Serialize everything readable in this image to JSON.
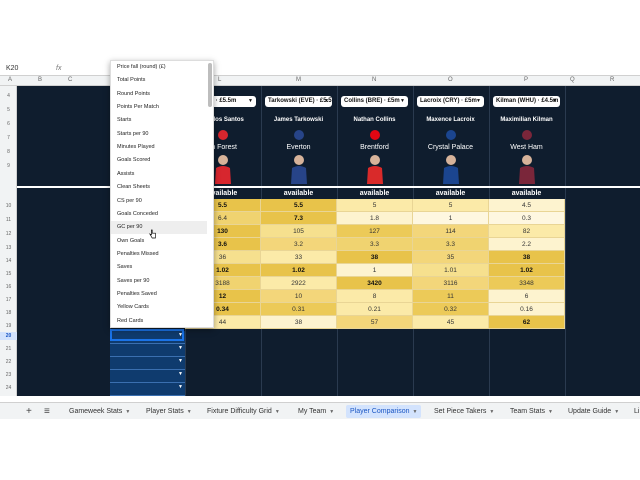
{
  "formula_bar": {
    "name_box": "K20",
    "fx": "fx"
  },
  "column_headers": [
    "A",
    "B",
    "C",
    "L",
    "M",
    "N",
    "O",
    "P",
    "Q",
    "R"
  ],
  "row_numbers": [
    "4",
    "5",
    "6",
    "7",
    "8",
    "9",
    "10",
    "11",
    "12",
    "13",
    "14",
    "15",
    "16",
    "17",
    "18",
    "19",
    "20",
    "21",
    "22",
    "23",
    "24"
  ],
  "selected_row": "20",
  "players": [
    {
      "dropdown": "o (NFO) · £5.5m",
      "name": "sta dos Santos",
      "team": "'m Forest",
      "availability": "available",
      "crest_color": "#d7262e",
      "kit_color": "#d7262e"
    },
    {
      "dropdown": "Tarkowski (EVE) · £5.5m",
      "name": "James Tarkowski",
      "team": "Everton",
      "availability": "available",
      "crest_color": "#274488",
      "kit_color": "#274488"
    },
    {
      "dropdown": "Collins (BRE) · £5m",
      "name": "Nathan Collins",
      "team": "Brentford",
      "availability": "available",
      "crest_color": "#e30613",
      "kit_color": "#d92a2a"
    },
    {
      "dropdown": "Lacroix (CRY) · £5m",
      "name": "Maxence Lacroix",
      "team": "Crystal Palace",
      "availability": "available",
      "crest_color": "#1b458f",
      "kit_color": "#1b458f"
    },
    {
      "dropdown": "Kilman (WHU) · £4.5m",
      "name": "Maximilian Kilman",
      "team": "West Ham",
      "availability": "available",
      "crest_color": "#7a263a",
      "kit_color": "#7a263a"
    }
  ],
  "stats_rows": [
    [
      "5.5",
      "5.5",
      "5",
      "5",
      "4.5"
    ],
    [
      "6.4",
      "7.3",
      "1.8",
      "1",
      "0.3"
    ],
    [
      "130",
      "105",
      "127",
      "114",
      "82"
    ],
    [
      "3.6",
      "3.2",
      "3.3",
      "3.3",
      "2.2"
    ],
    [
      "36",
      "33",
      "38",
      "35",
      "38"
    ],
    [
      "1.02",
      "1.02",
      "1",
      "1.01",
      "1.02"
    ],
    [
      "3188",
      "2922",
      "3420",
      "3116",
      "3348"
    ],
    [
      "12",
      "10",
      "8",
      "11",
      "6"
    ],
    [
      "0.34",
      "0.31",
      "0.21",
      "0.32",
      "0.16"
    ],
    [
      "44",
      "38",
      "57",
      "45",
      "62"
    ]
  ],
  "stats_bold": [
    [
      true,
      true,
      false,
      false,
      false
    ],
    [
      false,
      true,
      false,
      false,
      false
    ],
    [
      true,
      false,
      false,
      false,
      false
    ],
    [
      true,
      false,
      false,
      false,
      false
    ],
    [
      false,
      false,
      true,
      false,
      true
    ],
    [
      true,
      true,
      false,
      false,
      true
    ],
    [
      false,
      false,
      true,
      false,
      false
    ],
    [
      true,
      false,
      false,
      false,
      false
    ],
    [
      true,
      false,
      false,
      false,
      false
    ],
    [
      false,
      false,
      false,
      false,
      true
    ]
  ],
  "stats_colors": [
    [
      "#e8c34a",
      "#e8c34a",
      "#fbeaa8",
      "#fbeaa8",
      "#fdf3cf"
    ],
    [
      "#f0d370",
      "#e8c34a",
      "#fdf3cf",
      "#fef7e0",
      "#fef7e0"
    ],
    [
      "#e8c34a",
      "#f6e08e",
      "#ecca58",
      "#f3d67a",
      "#fbeaa8"
    ],
    [
      "#e8c34a",
      "#f3d67a",
      "#f0d370",
      "#f0d370",
      "#fdf3cf"
    ],
    [
      "#f6e08e",
      "#fbeaa8",
      "#e8c34a",
      "#f3d67a",
      "#e8c34a"
    ],
    [
      "#e8c34a",
      "#e8c34a",
      "#fdf3cf",
      "#f6e08e",
      "#e8c34a"
    ],
    [
      "#f0d370",
      "#fbeaa8",
      "#e8c34a",
      "#f3d67a",
      "#ecca58"
    ],
    [
      "#e8c34a",
      "#f3d67a",
      "#fbeaa8",
      "#ecca58",
      "#fdf3cf"
    ],
    [
      "#e8c34a",
      "#ecca58",
      "#fbeaa8",
      "#ecca58",
      "#fdf3cf"
    ],
    [
      "#fbeaa8",
      "#fdf3cf",
      "#f3d67a",
      "#fbeaa8",
      "#e8c34a"
    ]
  ],
  "dropdown_menu": {
    "items": [
      "Price fall (round) (£)",
      "Total Points",
      "Round Points",
      "Points Per Match",
      "Starts",
      "Starts per 90",
      "Minutes Played",
      "Goals Scored",
      "Assists",
      "Clean Sheets",
      "CS per 90",
      "Goals Conceded",
      "GC per 90",
      "Own Goals",
      "Penalties Missed",
      "Saves",
      "Saves per 90",
      "Penalties Saved",
      "Yellow Cards",
      "Red Cards"
    ],
    "highlighted": "GC per 90"
  },
  "tabs": [
    {
      "label": "Gameweek Stats",
      "active": false
    },
    {
      "label": "Player Stats",
      "active": false
    },
    {
      "label": "Fixture Difficulty Grid",
      "active": false
    },
    {
      "label": "My Team",
      "active": false
    },
    {
      "label": "Player Comparison",
      "active": true
    },
    {
      "label": "Set Piece Takers",
      "active": false
    },
    {
      "label": "Team Stats",
      "active": false
    },
    {
      "label": "Update Guide",
      "active": false
    },
    {
      "label": "Li",
      "active": false
    }
  ],
  "tab_icons": {
    "add": "+",
    "list": "≡"
  }
}
